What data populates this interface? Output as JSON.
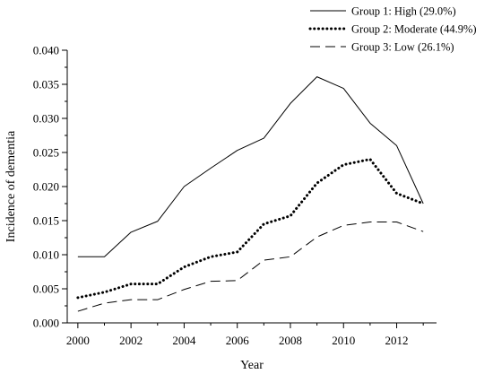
{
  "chart_data": {
    "type": "line",
    "xlabel": "Year",
    "ylabel": "Incidence of dementia",
    "xlim": [
      1999.6,
      2013.5
    ],
    "ylim": [
      0,
      0.04
    ],
    "x": [
      2000,
      2001,
      2002,
      2003,
      2004,
      2005,
      2006,
      2007,
      2008,
      2009,
      2010,
      2011,
      2012,
      2013
    ],
    "x_ticks": [
      "2000",
      "2002",
      "2004",
      "2006",
      "2008",
      "2010",
      "2012"
    ],
    "x_tick_values": [
      2000,
      2002,
      2004,
      2006,
      2008,
      2010,
      2012
    ],
    "y_ticks": [
      "0.000",
      "0.005",
      "0.010",
      "0.015",
      "0.020",
      "0.025",
      "0.030",
      "0.035",
      "0.040"
    ],
    "y_tick_values": [
      0,
      0.005,
      0.01,
      0.015,
      0.02,
      0.025,
      0.03,
      0.035,
      0.04
    ],
    "grid": false,
    "legend_position": "top-right",
    "series": [
      {
        "name": "Group 1: High (29.0%)",
        "style": "solid",
        "values": [
          0.0097,
          0.0097,
          0.0133,
          0.0149,
          0.02,
          0.0227,
          0.0253,
          0.0271,
          0.0322,
          0.0361,
          0.0344,
          0.0293,
          0.026,
          0.0175
        ]
      },
      {
        "name": "Group 2: Moderate (44.9%)",
        "style": "dotted",
        "values": [
          0.0037,
          0.0045,
          0.0057,
          0.0057,
          0.0082,
          0.0097,
          0.0104,
          0.0145,
          0.0157,
          0.0205,
          0.0232,
          0.024,
          0.019,
          0.0175
        ]
      },
      {
        "name": "Group 3: Low (26.1%)",
        "style": "dashed",
        "values": [
          0.0017,
          0.0029,
          0.0034,
          0.0034,
          0.0049,
          0.0061,
          0.0062,
          0.0092,
          0.0097,
          0.0126,
          0.0143,
          0.0148,
          0.0148,
          0.0134
        ]
      }
    ]
  }
}
